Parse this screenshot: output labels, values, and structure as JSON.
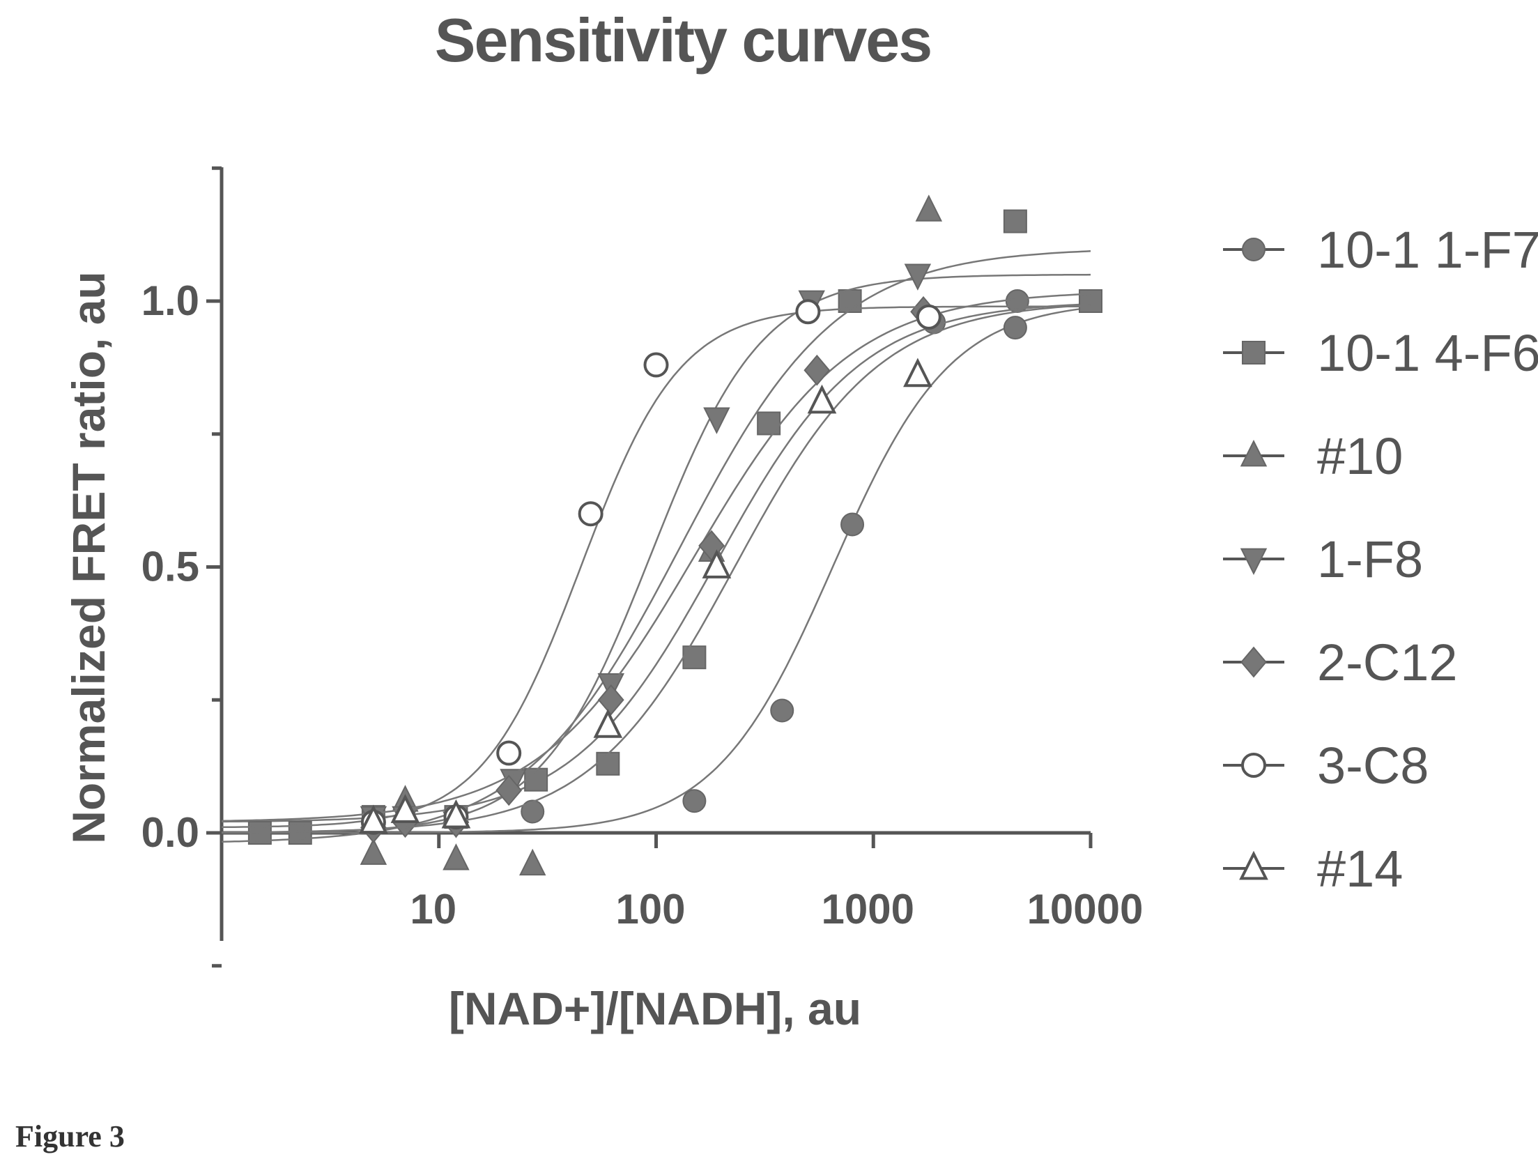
{
  "chart_data": {
    "type": "scatter",
    "title": "Sensitivity curves",
    "xlabel": "[NAD+]/[NADH], au",
    "ylabel": "Normalized  FRET ratio, au",
    "xscale": "log",
    "xlim": [
      1,
      10000
    ],
    "ylim": [
      -0.2,
      1.25
    ],
    "xticks": [
      1,
      10,
      100,
      1000,
      10000
    ],
    "xtick_labels": [
      "10",
      "100",
      "1000",
      "10000"
    ],
    "yticks": [
      0.0,
      0.5,
      1.0
    ],
    "ytick_labels": [
      "0.0",
      "0.5",
      "1.0"
    ],
    "legend_position": "right",
    "grid": false,
    "series": [
      {
        "name": "10-1 1-F7",
        "marker": "filled-circle",
        "fit": {
          "bottom": 0.0,
          "top": 1.0,
          "ec50": 650,
          "hill": 1.6
        },
        "x": [
          1.5,
          2.3,
          5,
          12,
          27,
          150,
          380,
          800,
          1900,
          4500,
          4600
        ],
        "y": [
          0.0,
          0.0,
          0.02,
          0.03,
          0.04,
          0.06,
          0.23,
          0.58,
          0.96,
          0.95,
          1.0
        ]
      },
      {
        "name": "10-1 4-F6",
        "marker": "filled-square",
        "fit": {
          "bottom": 0.02,
          "top": 1.0,
          "ec50": 190,
          "hill": 1.3
        },
        "x": [
          1.5,
          2.3,
          5,
          12,
          28,
          60,
          150,
          330,
          780,
          4500,
          10000
        ],
        "y": [
          0.0,
          0.0,
          0.03,
          0.03,
          0.1,
          0.13,
          0.33,
          0.77,
          1.0,
          1.15,
          1.0
        ]
      },
      {
        "name": "#10",
        "marker": "filled-triangle-up",
        "fit": {
          "bottom": -0.02,
          "top": 1.1,
          "ec50": 130,
          "hill": 1.2
        },
        "x": [
          5,
          7,
          12,
          27,
          60,
          180,
          1800
        ],
        "y": [
          -0.04,
          0.06,
          -0.05,
          -0.06,
          0.2,
          0.53,
          1.17
        ]
      },
      {
        "name": "1-F8",
        "marker": "filled-triangle-down",
        "fit": {
          "bottom": 0.0,
          "top": 1.05,
          "ec50": 95,
          "hill": 1.7
        },
        "x": [
          5,
          7,
          12,
          22,
          62,
          190,
          520,
          1600
        ],
        "y": [
          0.03,
          0.03,
          0.02,
          0.1,
          0.28,
          0.78,
          1.0,
          1.05
        ]
      },
      {
        "name": "2-C12",
        "marker": "filled-diamond",
        "fit": {
          "bottom": 0.02,
          "top": 1.02,
          "ec50": 150,
          "hill": 1.2
        },
        "x": [
          5,
          7,
          12,
          21,
          62,
          180,
          550,
          1700
        ],
        "y": [
          0.01,
          0.02,
          0.02,
          0.08,
          0.25,
          0.54,
          0.87,
          0.98
        ]
      },
      {
        "name": "3-C8",
        "marker": "open-circle",
        "fit": {
          "bottom": 0.01,
          "top": 0.99,
          "ec50": 45,
          "hill": 1.9
        },
        "x": [
          5,
          12,
          21,
          50,
          100,
          500,
          1800
        ],
        "y": [
          0.02,
          0.03,
          0.15,
          0.6,
          0.88,
          0.98,
          0.97
        ]
      },
      {
        "name": "#14",
        "marker": "open-triangle-up",
        "fit": {
          "bottom": 0.0,
          "top": 1.0,
          "ec50": 230,
          "hill": 1.3
        },
        "x": [
          5,
          7,
          12,
          60,
          190,
          580,
          1600
        ],
        "y": [
          0.02,
          0.04,
          0.03,
          0.2,
          0.5,
          0.81,
          0.86
        ]
      }
    ]
  },
  "caption": "Figure 3"
}
